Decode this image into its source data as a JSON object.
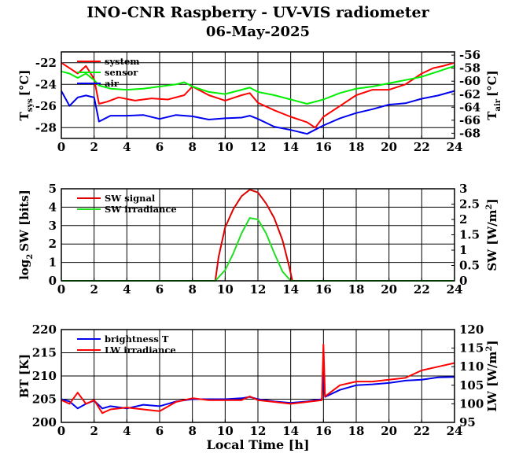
{
  "title": "INO-CNR Raspberry - UV-VIS radiometer",
  "subtitle": "06-May-2025",
  "colors": {
    "red": "#ff0000",
    "green": "#00ee00",
    "blue": "#0000ee",
    "darkred": "#dd0000",
    "darkgreen": "#22dd22"
  },
  "chart_data": [
    {
      "type": "line",
      "ylabel_left": "T",
      "ylabel_left_sub": "sys",
      "ylabel_left_unit": "[°C]",
      "ylabel_right": "T",
      "ylabel_right_sub": "air",
      "ylabel_right_unit": "[°C]",
      "xlim": [
        0,
        24
      ],
      "ylim_left": [
        -29,
        -21
      ],
      "ylim_right": [
        -68.8,
        -55.5
      ],
      "xticks": [
        "0",
        "2",
        "4",
        "6",
        "8",
        "10",
        "12",
        "14",
        "16",
        "18",
        "20",
        "22",
        "24"
      ],
      "yticks_left": [
        "-22",
        "-24",
        "-26",
        "-28"
      ],
      "yticks_left_values": [
        -22,
        -24,
        -26,
        -28
      ],
      "yticks_right": [
        "-56",
        "-58",
        "-60",
        "-62",
        "-64",
        "-66",
        "-68"
      ],
      "yticks_right_values": [
        -56,
        -58,
        -60,
        -62,
        -64,
        -66,
        -68
      ],
      "grid": true,
      "legend_position": "top-left",
      "series": [
        {
          "name": "system",
          "axis": "left",
          "color": "#ff0000",
          "x": [
            0,
            0.5,
            1,
            1.5,
            2,
            2.3,
            2.8,
            3.5,
            4.5,
            5.5,
            6.5,
            7.5,
            8,
            9,
            10,
            11,
            11.5,
            12,
            13,
            14,
            15,
            15.5,
            16,
            17,
            18,
            19,
            20,
            21,
            22,
            22.7,
            23.3,
            24
          ],
          "y": [
            -22,
            -22.5,
            -23,
            -22.3,
            -23.5,
            -25.8,
            -25.6,
            -25.2,
            -25.5,
            -25.3,
            -25.4,
            -25,
            -24.2,
            -25,
            -25.5,
            -25,
            -24.8,
            -25.7,
            -26.4,
            -27,
            -27.5,
            -28,
            -27,
            -26,
            -25,
            -24.5,
            -24.5,
            -24,
            -23,
            -22.5,
            -22.3,
            -22
          ]
        },
        {
          "name": "sensor",
          "axis": "left",
          "color": "#00ee00",
          "x": [
            0,
            0.5,
            1,
            1.5,
            2,
            2.3,
            3,
            4,
            5,
            6,
            7,
            7.5,
            8,
            9,
            10,
            11,
            11.5,
            12,
            13,
            14,
            15,
            16,
            17,
            18,
            19,
            20,
            21,
            22,
            23,
            24
          ],
          "y": [
            -22.8,
            -23,
            -23.4,
            -23,
            -23.6,
            -24.1,
            -24.4,
            -24.5,
            -24.4,
            -24.2,
            -24,
            -23.8,
            -24.2,
            -24.7,
            -24.9,
            -24.5,
            -24.3,
            -24.7,
            -25,
            -25.4,
            -25.8,
            -25.4,
            -24.8,
            -24.4,
            -24.2,
            -23.9,
            -23.6,
            -23.3,
            -22.8,
            -22.3
          ]
        },
        {
          "name": "air",
          "axis": "right",
          "color": "#0000ee",
          "x": [
            0,
            0.5,
            1,
            1.5,
            2,
            2.3,
            3,
            4,
            5,
            6,
            7,
            8,
            9,
            10,
            11,
            11.5,
            12,
            13,
            14,
            15,
            16,
            17,
            18,
            19,
            20,
            21,
            22,
            23,
            24
          ],
          "y": [
            -61.5,
            -63.8,
            -62.5,
            -62.2,
            -62.5,
            -66.2,
            -65.3,
            -65.3,
            -65.2,
            -65.8,
            -65.2,
            -65.4,
            -65.9,
            -65.7,
            -65.6,
            -65.3,
            -65.8,
            -67,
            -67.5,
            -68.1,
            -66.8,
            -65.7,
            -64.9,
            -64.3,
            -63.6,
            -63.4,
            -62.7,
            -62.2,
            -61.5
          ]
        }
      ]
    },
    {
      "type": "line",
      "ylabel_left": "log",
      "ylabel_left_sub": "2",
      "ylabel_left_unit": "SW [bits]",
      "ylabel_right": "SW [W/m",
      "ylabel_right_sup": "2",
      "ylabel_right_unit": "]",
      "xlim": [
        0,
        24
      ],
      "ylim_left": [
        0,
        5
      ],
      "ylim_right": [
        0,
        3
      ],
      "xticks": [
        "0",
        "2",
        "4",
        "6",
        "8",
        "10",
        "12",
        "14",
        "16",
        "18",
        "20",
        "22",
        "24"
      ],
      "yticks_left": [
        "0",
        "1",
        "2",
        "3",
        "4",
        "5"
      ],
      "yticks_left_values": [
        0,
        1,
        2,
        3,
        4,
        5
      ],
      "yticks_right": [
        "0",
        "0.5",
        "1",
        "1.5",
        "2",
        "2.5",
        "3"
      ],
      "yticks_right_values": [
        0,
        0.5,
        1,
        1.5,
        2,
        2.5,
        3
      ],
      "grid": true,
      "legend_position": "top-left",
      "series": [
        {
          "name": "SW signal",
          "axis": "left",
          "color": "#dd0000",
          "x": [
            0,
            9.4,
            9.6,
            10,
            10.5,
            11,
            11.5,
            12,
            12.5,
            13,
            13.5,
            13.9,
            14.1,
            24
          ],
          "y": [
            0,
            0,
            1.3,
            2.9,
            3.9,
            4.6,
            4.95,
            4.8,
            4.2,
            3.4,
            2.2,
            0.8,
            0,
            0
          ]
        },
        {
          "name": "SW irradiance",
          "axis": "right",
          "color": "#22dd22",
          "x": [
            0,
            9.4,
            10,
            10.5,
            11,
            11.5,
            12,
            12.5,
            13,
            13.5,
            14,
            24
          ],
          "y": [
            0,
            0,
            0.35,
            0.9,
            1.55,
            2.05,
            2.0,
            1.55,
            0.9,
            0.3,
            0,
            0
          ]
        }
      ]
    },
    {
      "type": "line",
      "ylabel_left": "BT [K]",
      "ylabel_right": "LW [W/m",
      "ylabel_right_sup": "2",
      "ylabel_right_unit": "]",
      "xlabel": "Local Time [h]",
      "xlim": [
        0,
        24
      ],
      "ylim_left": [
        200,
        220
      ],
      "ylim_right": [
        95,
        120
      ],
      "xticks": [
        "0",
        "2",
        "4",
        "6",
        "8",
        "10",
        "12",
        "14",
        "16",
        "18",
        "20",
        "22",
        "24"
      ],
      "yticks_left": [
        "200",
        "205",
        "210",
        "215",
        "220"
      ],
      "yticks_left_values": [
        200,
        205,
        210,
        215,
        220
      ],
      "yticks_right": [
        "95",
        "100",
        "105",
        "110",
        "115",
        "120"
      ],
      "yticks_right_values": [
        95,
        100,
        105,
        110,
        115,
        120
      ],
      "grid": true,
      "legend_position": "top-left",
      "series": [
        {
          "name": "brightness T",
          "axis": "left",
          "color": "#0000ee",
          "x": [
            0,
            0.5,
            1,
            1.5,
            2,
            2.5,
            3,
            4,
            5,
            6,
            7,
            8,
            9,
            10,
            11,
            11.5,
            12,
            13,
            14,
            15,
            15.9,
            16,
            16.1,
            17,
            18,
            19,
            20,
            21,
            22,
            23,
            24
          ],
          "y": [
            205,
            204.5,
            203,
            204,
            204.7,
            203,
            203.5,
            203,
            203.8,
            203.5,
            204.5,
            205,
            205,
            205,
            205.2,
            205.5,
            205,
            204.5,
            204.2,
            204.5,
            205,
            210,
            205.5,
            207,
            208,
            208.2,
            208.5,
            209,
            209.2,
            209.7,
            209.8
          ]
        },
        {
          "name": "LW irradiance",
          "axis": "right",
          "color": "#ff0000",
          "x": [
            0,
            0.5,
            1,
            1.5,
            2,
            2.5,
            3,
            4,
            5,
            6,
            7,
            8,
            9,
            10,
            11,
            11.5,
            12,
            13,
            14,
            15,
            15.9,
            16,
            16.1,
            17,
            18,
            19,
            20,
            21,
            22,
            23,
            24
          ],
          "y": [
            101,
            100,
            103,
            100,
            101,
            97.5,
            98.5,
            99,
            98.5,
            98,
            100.5,
            101.5,
            101,
            101,
            101,
            102,
            101,
            100.5,
            100,
            100.5,
            101,
            116,
            102,
            105,
            106,
            106,
            106.5,
            107,
            109,
            110,
            111
          ]
        }
      ]
    }
  ]
}
